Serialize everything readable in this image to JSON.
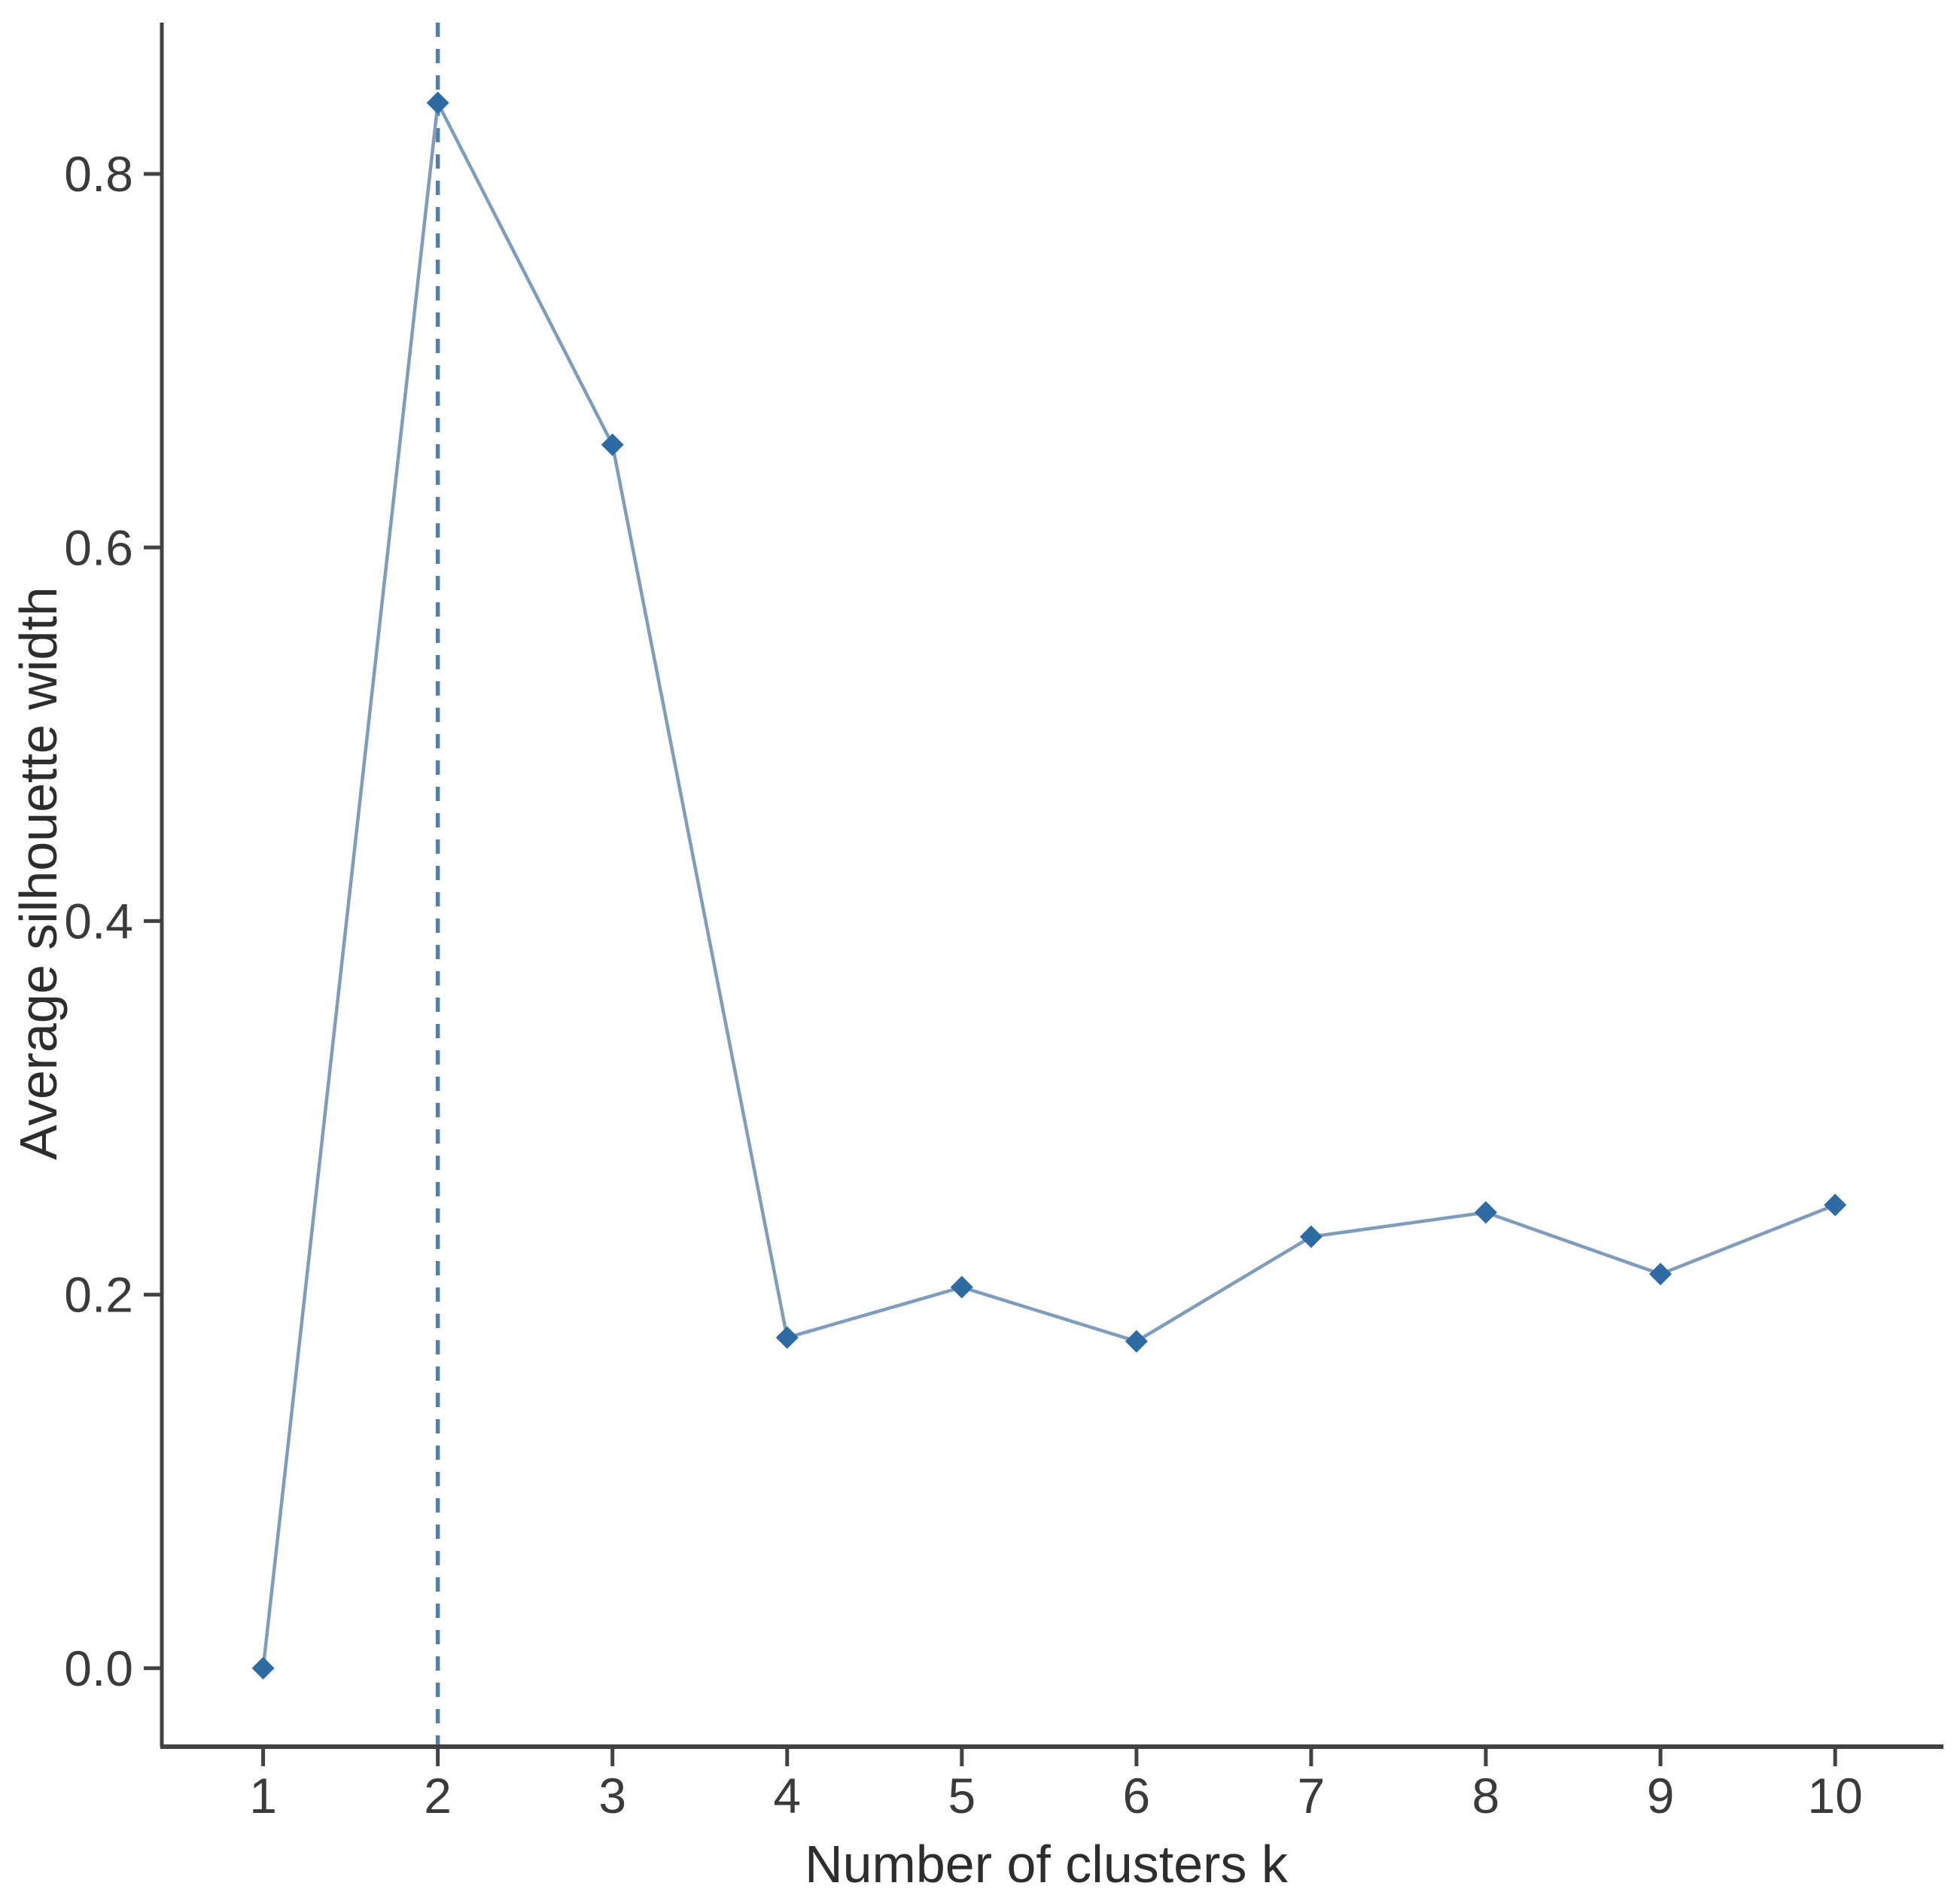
{
  "chart_data": {
    "type": "line",
    "title": "",
    "xlabel": "Number of clusters k",
    "ylabel": "Average silhouette width",
    "x": [
      1,
      2,
      3,
      4,
      5,
      6,
      7,
      8,
      9,
      10
    ],
    "series": [
      {
        "name": "average-silhouette-width",
        "values": [
          0.0,
          0.838,
          0.655,
          0.177,
          0.204,
          0.175,
          0.231,
          0.244,
          0.211,
          0.248
        ]
      }
    ],
    "xticks": [
      "1",
      "2",
      "3",
      "4",
      "5",
      "6",
      "7",
      "8",
      "9",
      "10"
    ],
    "xtick_values": [
      1,
      2,
      3,
      4,
      5,
      6,
      7,
      8,
      9,
      10
    ],
    "yticks": [
      "0.0",
      "0.2",
      "0.4",
      "0.6",
      "0.8"
    ],
    "ytick_values": [
      0.0,
      0.2,
      0.4,
      0.6,
      0.8
    ],
    "xlim": [
      0.42,
      10.62
    ],
    "ylim": [
      -0.042,
      0.881
    ],
    "grid": false,
    "legend": null,
    "marker_shape": "diamond",
    "annotations": [
      {
        "type": "vline",
        "x": 2,
        "style": "dashed",
        "meaning": "optimal-number-of-clusters"
      }
    ],
    "colors": {
      "marker": "#2e6ba3",
      "line": "#7f9cba",
      "dashed_line": "#54809f",
      "axis": "#424242",
      "tick_text": "#3a3a3a",
      "label_text": "#2d2d2d",
      "background": "#ffffff"
    }
  }
}
